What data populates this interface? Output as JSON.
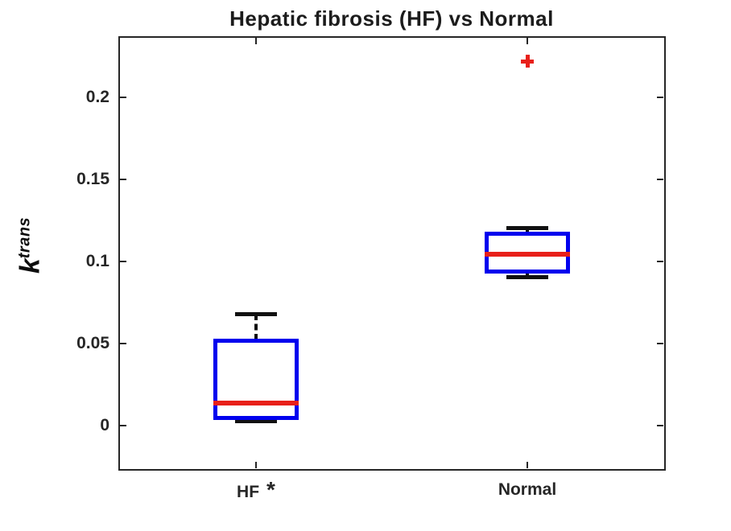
{
  "chart_data": {
    "type": "boxplot",
    "title": "Hepatic fibrosis (HF) vs Normal",
    "ylabel": {
      "base": "k",
      "superscript": "trans"
    },
    "xlabel": "",
    "categories": [
      {
        "label": "HF",
        "marker": "*"
      },
      {
        "label": "Normal",
        "marker": ""
      }
    ],
    "series": [
      {
        "name": "HF",
        "whisker_low": 0.003,
        "q1": 0.005,
        "median": 0.014,
        "q3": 0.052,
        "whisker_high": 0.068,
        "outliers": []
      },
      {
        "name": "Normal",
        "whisker_low": 0.0905,
        "q1": 0.094,
        "median": 0.1045,
        "q3": 0.117,
        "whisker_high": 0.1205,
        "outliers": [
          0.222
        ]
      }
    ],
    "yticks": [
      {
        "value": 0,
        "label": "0"
      },
      {
        "value": 0.05,
        "label": "0.05"
      },
      {
        "value": 0.1,
        "label": "0.1"
      },
      {
        "value": 0.15,
        "label": "0.15"
      },
      {
        "value": 0.2,
        "label": "0.2"
      }
    ],
    "ylim": [
      -0.0259,
      0.2361
    ],
    "grid": false,
    "legend": null,
    "colors": {
      "box_edge": "#0000ee",
      "median": "#e8201a",
      "whisker": "#111111",
      "outlier": "#e8201a",
      "axis": "#262626",
      "text": "#262626"
    }
  }
}
